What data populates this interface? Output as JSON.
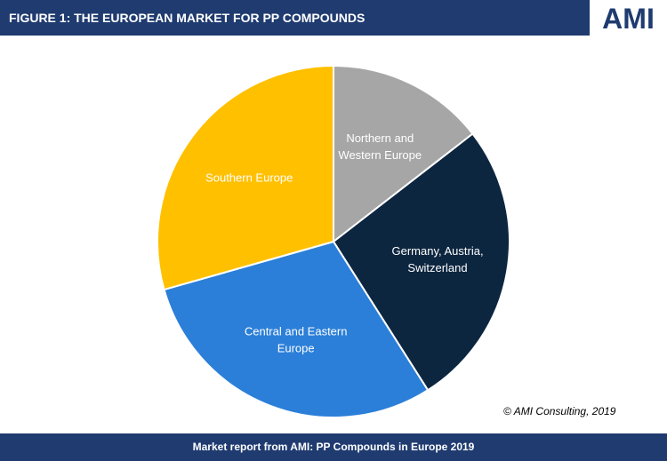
{
  "header": {
    "title": "FIGURE 1:  THE EUROPEAN MARKET FOR PP COMPOUNDS",
    "logo_text": "AMI"
  },
  "chart_data": {
    "type": "pie",
    "slices": [
      {
        "name": "Northern and Western Europe",
        "label_lines": [
          "Northern and",
          "Western Europe"
        ],
        "value": 14.5,
        "color": "#a6a6a6",
        "label_color": "#ffffff"
      },
      {
        "name": "Germany, Austria, Switzerland",
        "label_lines": [
          "Germany, Austria,",
          "Switzerland"
        ],
        "value": 26.5,
        "color": "#0d2640",
        "label_color": "#ffffff"
      },
      {
        "name": "Central and Eastern Europe",
        "label_lines": [
          "Central and Eastern",
          "Europe"
        ],
        "value": 29.6,
        "color": "#2b7fd8",
        "label_color": "#ffffff"
      },
      {
        "name": "Southern Europe",
        "label_lines": [
          "Southern Europe"
        ],
        "value": 29.4,
        "color": "#ffc000",
        "label_color": "#ffffff"
      }
    ]
  },
  "copyright": "© AMI Consulting, 2019",
  "footer": {
    "text": "Market report from AMI: PP Compounds in Europe 2019"
  }
}
